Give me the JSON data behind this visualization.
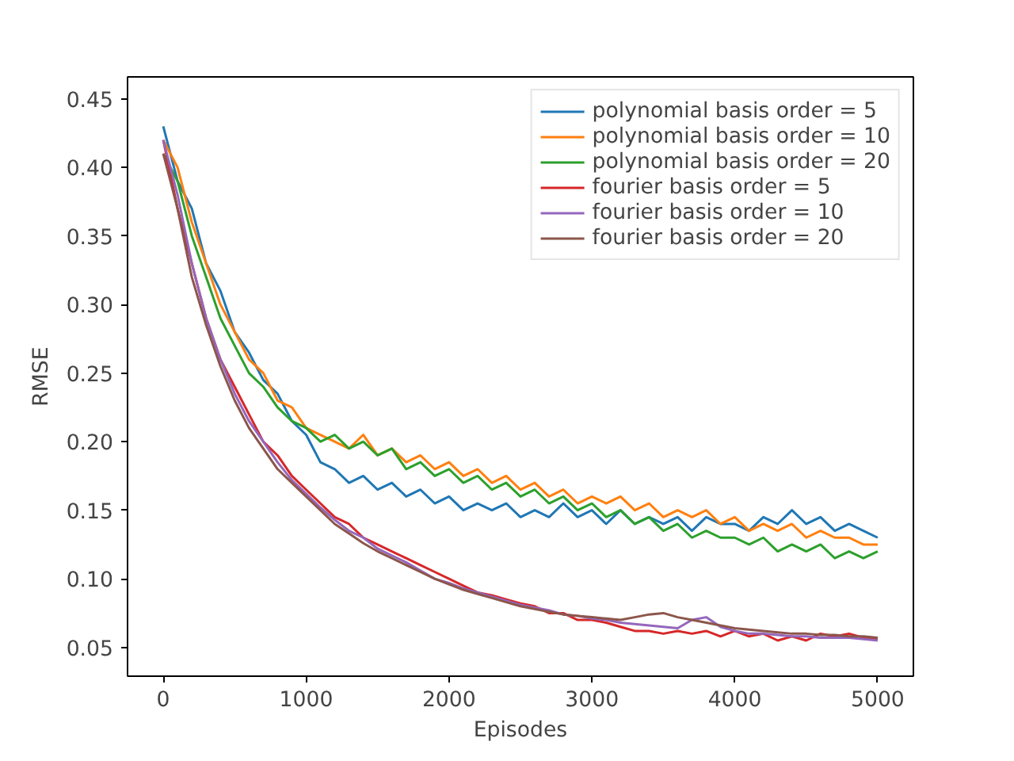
{
  "chart_data": {
    "type": "line",
    "xlabel": "Episodes",
    "ylabel": "RMSE",
    "x": [
      0,
      100,
      200,
      300,
      400,
      500,
      600,
      700,
      800,
      900,
      1000,
      1100,
      1200,
      1300,
      1400,
      1500,
      1600,
      1700,
      1800,
      1900,
      2000,
      2100,
      2200,
      2300,
      2400,
      2500,
      2600,
      2700,
      2800,
      2900,
      3000,
      3100,
      3200,
      3300,
      3400,
      3500,
      3600,
      3700,
      3800,
      3900,
      4000,
      4100,
      4200,
      4300,
      4400,
      4500,
      4600,
      4700,
      4800,
      4900,
      5000
    ],
    "xlim": [
      -250,
      5250
    ],
    "xticks": [
      0,
      1000,
      2000,
      3000,
      4000,
      5000
    ],
    "ylim": [
      0.029,
      0.466
    ],
    "yticks": [
      {
        "value": 0.05,
        "label": "0.05"
      },
      {
        "value": 0.1,
        "label": "0.10"
      },
      {
        "value": 0.15,
        "label": "0.15"
      },
      {
        "value": 0.2,
        "label": "0.20"
      },
      {
        "value": 0.25,
        "label": "0.25"
      },
      {
        "value": 0.3,
        "label": "0.30"
      },
      {
        "value": 0.35,
        "label": "0.35"
      },
      {
        "value": 0.4,
        "label": "0.40"
      },
      {
        "value": 0.45,
        "label": "0.45"
      }
    ],
    "legend": "top right",
    "grid": false,
    "series": [
      {
        "name": "polynomial basis order = 5",
        "color": "#1f77b4",
        "values": [
          0.43,
          0.39,
          0.37,
          0.33,
          0.31,
          0.28,
          0.265,
          0.245,
          0.235,
          0.215,
          0.205,
          0.185,
          0.18,
          0.17,
          0.175,
          0.165,
          0.17,
          0.16,
          0.165,
          0.155,
          0.16,
          0.15,
          0.155,
          0.15,
          0.155,
          0.145,
          0.15,
          0.145,
          0.155,
          0.145,
          0.15,
          0.14,
          0.15,
          0.14,
          0.145,
          0.14,
          0.145,
          0.135,
          0.145,
          0.14,
          0.14,
          0.135,
          0.145,
          0.14,
          0.15,
          0.14,
          0.145,
          0.135,
          0.14,
          0.135,
          0.13
        ]
      },
      {
        "name": "polynomial basis order = 10",
        "color": "#ff7f0e",
        "values": [
          0.42,
          0.4,
          0.36,
          0.33,
          0.3,
          0.28,
          0.26,
          0.25,
          0.23,
          0.225,
          0.21,
          0.205,
          0.2,
          0.195,
          0.205,
          0.19,
          0.195,
          0.185,
          0.19,
          0.18,
          0.185,
          0.175,
          0.18,
          0.17,
          0.175,
          0.165,
          0.17,
          0.16,
          0.165,
          0.155,
          0.16,
          0.155,
          0.16,
          0.15,
          0.155,
          0.145,
          0.15,
          0.145,
          0.15,
          0.14,
          0.145,
          0.135,
          0.14,
          0.135,
          0.14,
          0.13,
          0.135,
          0.13,
          0.13,
          0.125,
          0.125
        ]
      },
      {
        "name": "polynomial basis order = 20",
        "color": "#2ca02c",
        "values": [
          0.41,
          0.39,
          0.35,
          0.32,
          0.29,
          0.27,
          0.25,
          0.24,
          0.225,
          0.215,
          0.21,
          0.2,
          0.205,
          0.195,
          0.2,
          0.19,
          0.195,
          0.18,
          0.185,
          0.175,
          0.18,
          0.17,
          0.175,
          0.165,
          0.17,
          0.16,
          0.165,
          0.155,
          0.16,
          0.15,
          0.155,
          0.145,
          0.15,
          0.14,
          0.145,
          0.135,
          0.14,
          0.13,
          0.135,
          0.13,
          0.13,
          0.125,
          0.13,
          0.12,
          0.125,
          0.12,
          0.125,
          0.115,
          0.12,
          0.115,
          0.12
        ]
      },
      {
        "name": "fourier basis order = 5",
        "color": "#d62728",
        "values": [
          0.42,
          0.37,
          0.33,
          0.29,
          0.26,
          0.24,
          0.22,
          0.2,
          0.19,
          0.175,
          0.165,
          0.155,
          0.145,
          0.14,
          0.13,
          0.125,
          0.12,
          0.115,
          0.11,
          0.105,
          0.1,
          0.095,
          0.09,
          0.088,
          0.085,
          0.082,
          0.08,
          0.075,
          0.075,
          0.07,
          0.07,
          0.068,
          0.065,
          0.062,
          0.062,
          0.06,
          0.062,
          0.06,
          0.062,
          0.058,
          0.062,
          0.058,
          0.06,
          0.055,
          0.058,
          0.055,
          0.06,
          0.058,
          0.06,
          0.057,
          0.056
        ]
      },
      {
        "name": "fourier basis order = 10",
        "color": "#9467bd",
        "values": [
          0.42,
          0.38,
          0.33,
          0.29,
          0.26,
          0.235,
          0.215,
          0.2,
          0.185,
          0.172,
          0.162,
          0.152,
          0.143,
          0.135,
          0.13,
          0.122,
          0.117,
          0.112,
          0.106,
          0.1,
          0.097,
          0.093,
          0.09,
          0.087,
          0.084,
          0.081,
          0.079,
          0.077,
          0.074,
          0.073,
          0.071,
          0.07,
          0.068,
          0.067,
          0.066,
          0.065,
          0.064,
          0.07,
          0.072,
          0.065,
          0.062,
          0.06,
          0.06,
          0.059,
          0.058,
          0.058,
          0.057,
          0.057,
          0.057,
          0.056,
          0.055
        ]
      },
      {
        "name": "fourier basis order = 20",
        "color": "#8c564b",
        "values": [
          0.41,
          0.37,
          0.32,
          0.285,
          0.255,
          0.23,
          0.21,
          0.195,
          0.18,
          0.17,
          0.16,
          0.15,
          0.14,
          0.133,
          0.126,
          0.12,
          0.115,
          0.11,
          0.105,
          0.1,
          0.096,
          0.092,
          0.089,
          0.086,
          0.083,
          0.08,
          0.078,
          0.076,
          0.074,
          0.073,
          0.072,
          0.071,
          0.07,
          0.072,
          0.074,
          0.075,
          0.072,
          0.07,
          0.068,
          0.066,
          0.064,
          0.063,
          0.062,
          0.061,
          0.06,
          0.06,
          0.059,
          0.059,
          0.058,
          0.058,
          0.057
        ]
      }
    ]
  }
}
